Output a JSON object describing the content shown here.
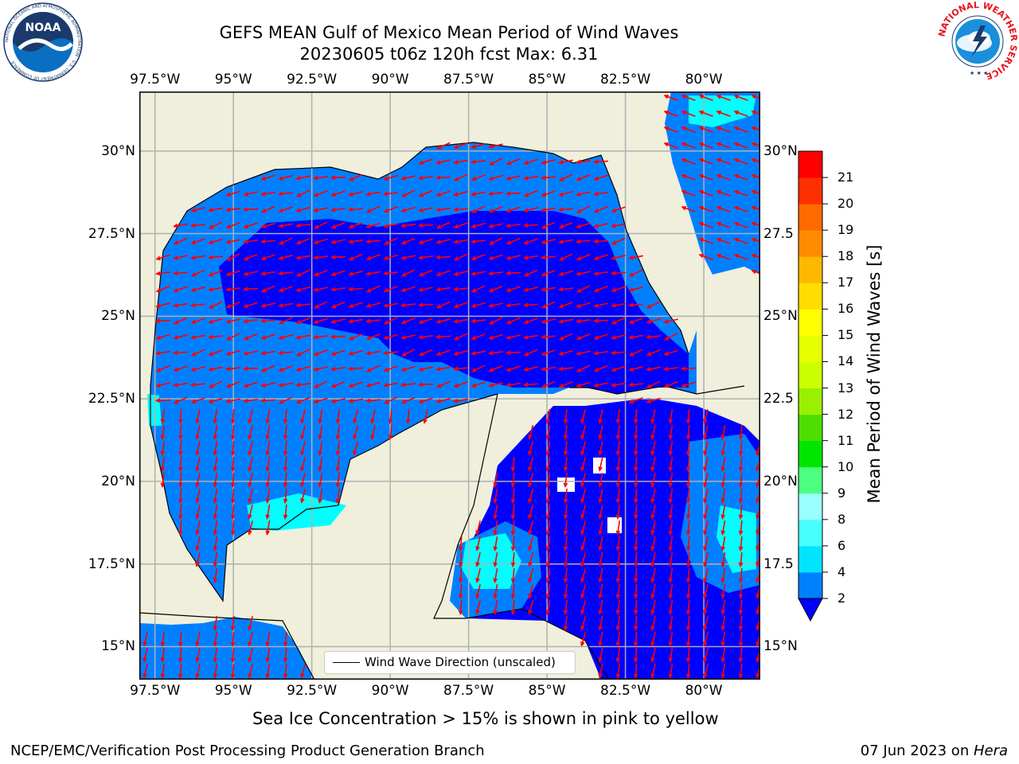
{
  "title": {
    "line1": "GEFS MEAN Gulf of Mexico Mean Period of Wind Waves",
    "line2": "20230605 t06z 120h fcst   Max: 6.31"
  },
  "map": {
    "lon_labels": [
      "97.5°W",
      "95°W",
      "92.5°W",
      "90°W",
      "87.5°W",
      "85°W",
      "82.5°W",
      "80°W"
    ],
    "lon_values": [
      -97.5,
      -95,
      -92.5,
      -90,
      -87.5,
      -85,
      -82.5,
      -80
    ],
    "lat_labels_left": [
      "30°N",
      "27.5°N",
      "25°N",
      "22.5°N",
      "20°N",
      "17.5°N",
      "15°N"
    ],
    "lat_labels_right": [
      "30°N",
      "27.5",
      "25°N",
      "22.5",
      "20°N",
      "17.5",
      "15°N"
    ],
    "lat_values": [
      30,
      27.5,
      25,
      22.5,
      20,
      17.5,
      15
    ],
    "extent": {
      "lon_min": -98,
      "lon_max": -78.2,
      "lat_min": 14.0,
      "lat_max": 31.8
    },
    "land_color": "#efefdc",
    "grid_color": "#b0b0b0",
    "arrow_color": "#ff0000"
  },
  "legend": {
    "label": "Wind Wave Direction (unscaled)"
  },
  "colorbar": {
    "title": "Mean Period of Wind Waves [s]",
    "levels": [
      "2",
      "4",
      "6",
      "8",
      "9",
      "10",
      "11",
      "12",
      "13",
      "14",
      "15",
      "16",
      "17",
      "18",
      "19",
      "20",
      "21"
    ],
    "colors": [
      "#0080ff",
      "#00e5ff",
      "#47ffff",
      "#9cffff",
      "#4dff80",
      "#00e600",
      "#4ddf00",
      "#99f000",
      "#ccff00",
      "#e6ff00",
      "#ffff00",
      "#ffdd00",
      "#ffb800",
      "#ff8c00",
      "#ff6a00",
      "#ff3000",
      "#ff0000"
    ],
    "extend_color": "#0000ff"
  },
  "subtitle": "Sea Ice Concentration > 15% is shown in pink to yellow",
  "footer": {
    "left": "NCEP/EMC/Verification Post Processing Product Generation Branch",
    "right_date": "07 Jun 2023 on ",
    "right_host": "Hera"
  },
  "logos": {
    "noaa": {
      "text": "NOAA",
      "ring": "NATIONAL OCEANIC AND ATMOSPHERIC ADMINISTRATION · U.S. DEPARTMENT OF COMMERCE"
    },
    "nws": {
      "ring": "NATIONAL WEATHER SERVICE"
    }
  }
}
